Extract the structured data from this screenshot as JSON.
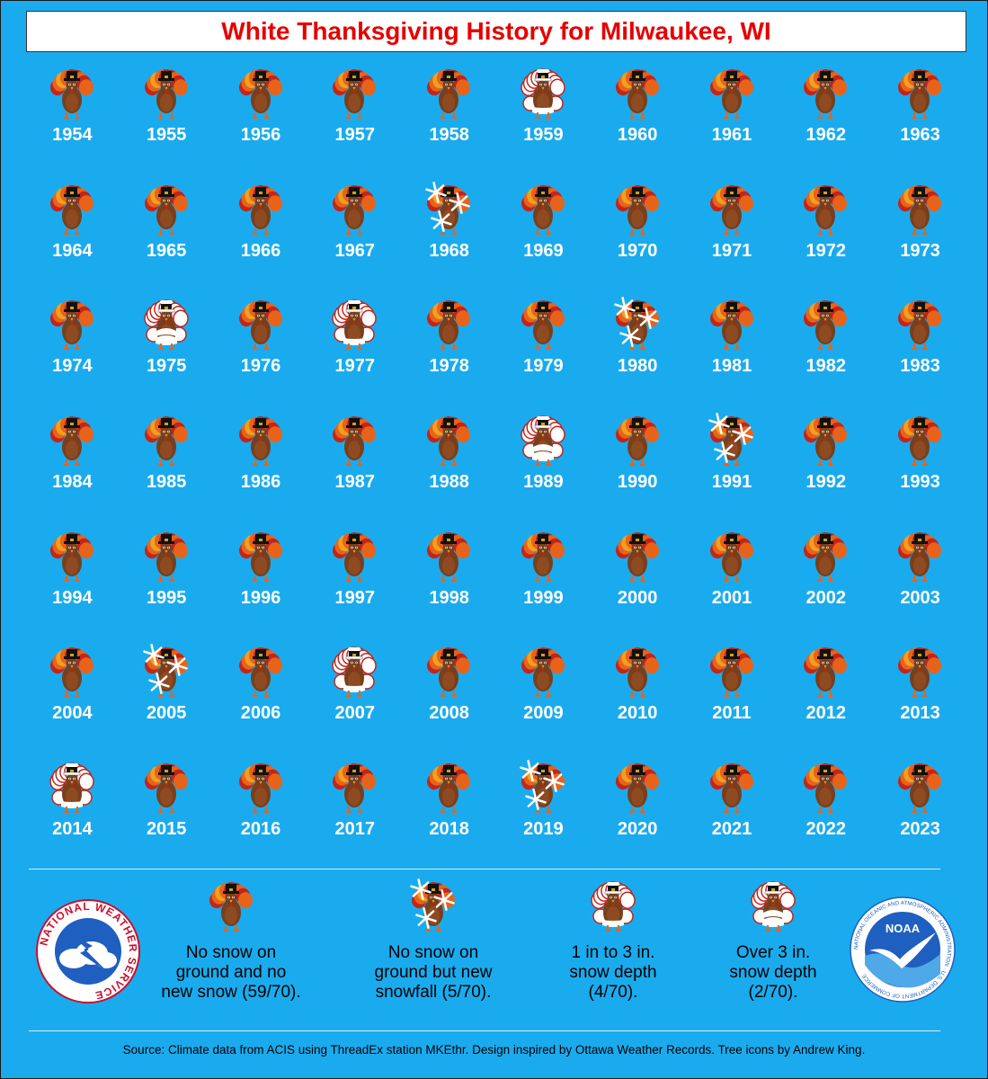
{
  "title": "White Thanksgiving History for Milwaukee, WI",
  "categories": {
    "N": "No snow on ground and no new snow",
    "S": "No snow on ground but new snowfall",
    "L": "1 in to 3 in. snow depth",
    "H": "Over 3 in. snow depth"
  },
  "years": [
    {
      "year": "1954",
      "cat": "N"
    },
    {
      "year": "1955",
      "cat": "N"
    },
    {
      "year": "1956",
      "cat": "N"
    },
    {
      "year": "1957",
      "cat": "N"
    },
    {
      "year": "1958",
      "cat": "N"
    },
    {
      "year": "1959",
      "cat": "L"
    },
    {
      "year": "1960",
      "cat": "N"
    },
    {
      "year": "1961",
      "cat": "N"
    },
    {
      "year": "1962",
      "cat": "N"
    },
    {
      "year": "1963",
      "cat": "N"
    },
    {
      "year": "1964",
      "cat": "N"
    },
    {
      "year": "1965",
      "cat": "N"
    },
    {
      "year": "1966",
      "cat": "N"
    },
    {
      "year": "1967",
      "cat": "N"
    },
    {
      "year": "1968",
      "cat": "S"
    },
    {
      "year": "1969",
      "cat": "N"
    },
    {
      "year": "1970",
      "cat": "N"
    },
    {
      "year": "1971",
      "cat": "N"
    },
    {
      "year": "1972",
      "cat": "N"
    },
    {
      "year": "1973",
      "cat": "N"
    },
    {
      "year": "1974",
      "cat": "N"
    },
    {
      "year": "1975",
      "cat": "H"
    },
    {
      "year": "1976",
      "cat": "N"
    },
    {
      "year": "1977",
      "cat": "L"
    },
    {
      "year": "1978",
      "cat": "N"
    },
    {
      "year": "1979",
      "cat": "N"
    },
    {
      "year": "1980",
      "cat": "S"
    },
    {
      "year": "1981",
      "cat": "N"
    },
    {
      "year": "1982",
      "cat": "N"
    },
    {
      "year": "1983",
      "cat": "N"
    },
    {
      "year": "1984",
      "cat": "N"
    },
    {
      "year": "1985",
      "cat": "N"
    },
    {
      "year": "1986",
      "cat": "N"
    },
    {
      "year": "1987",
      "cat": "N"
    },
    {
      "year": "1988",
      "cat": "N"
    },
    {
      "year": "1989",
      "cat": "H"
    },
    {
      "year": "1990",
      "cat": "N"
    },
    {
      "year": "1991",
      "cat": "S"
    },
    {
      "year": "1992",
      "cat": "N"
    },
    {
      "year": "1993",
      "cat": "N"
    },
    {
      "year": "1994",
      "cat": "N"
    },
    {
      "year": "1995",
      "cat": "N"
    },
    {
      "year": "1996",
      "cat": "N"
    },
    {
      "year": "1997",
      "cat": "N"
    },
    {
      "year": "1998",
      "cat": "N"
    },
    {
      "year": "1999",
      "cat": "N"
    },
    {
      "year": "2000",
      "cat": "N"
    },
    {
      "year": "2001",
      "cat": "N"
    },
    {
      "year": "2002",
      "cat": "N"
    },
    {
      "year": "2003",
      "cat": "N"
    },
    {
      "year": "2004",
      "cat": "N"
    },
    {
      "year": "2005",
      "cat": "S"
    },
    {
      "year": "2006",
      "cat": "N"
    },
    {
      "year": "2007",
      "cat": "L"
    },
    {
      "year": "2008",
      "cat": "N"
    },
    {
      "year": "2009",
      "cat": "N"
    },
    {
      "year": "2010",
      "cat": "N"
    },
    {
      "year": "2011",
      "cat": "N"
    },
    {
      "year": "2012",
      "cat": "N"
    },
    {
      "year": "2013",
      "cat": "N"
    },
    {
      "year": "2014",
      "cat": "L"
    },
    {
      "year": "2015",
      "cat": "N"
    },
    {
      "year": "2016",
      "cat": "N"
    },
    {
      "year": "2017",
      "cat": "N"
    },
    {
      "year": "2018",
      "cat": "N"
    },
    {
      "year": "2019",
      "cat": "S"
    },
    {
      "year": "2020",
      "cat": "N"
    },
    {
      "year": "2021",
      "cat": "N"
    },
    {
      "year": "2022",
      "cat": "N"
    },
    {
      "year": "2023",
      "cat": "N"
    }
  ],
  "legend": {
    "no_snow": {
      "line1": "No snow on",
      "line2": "ground and no",
      "line3": "new snow (59/70)."
    },
    "new_snow": {
      "line1": "No snow on",
      "line2": "ground but new",
      "line3": "snowfall (5/70)."
    },
    "light": {
      "line1": "1 in to 3 in.",
      "line2": "snow depth",
      "line3": "(4/70)."
    },
    "heavy": {
      "line1": "Over 3 in.",
      "line2": "snow depth",
      "line3": "(2/70)."
    }
  },
  "logos": {
    "nws_text": "NATIONAL WEATHER SERVICE",
    "noaa_label": "NOAA",
    "noaa_ring": "NATIONAL OCEANIC AND ATMOSPHERIC ADMINISTRATION · U.S. DEPARTMENT OF COMMERCE"
  },
  "source": "Source: Climate data from ACIS using ThreadEx station MKEthr. Design inspired by Ottawa Weather Records. Tree icons by Andrew King.",
  "colors": {
    "background": "#1AABEE",
    "title": "#E60000"
  }
}
